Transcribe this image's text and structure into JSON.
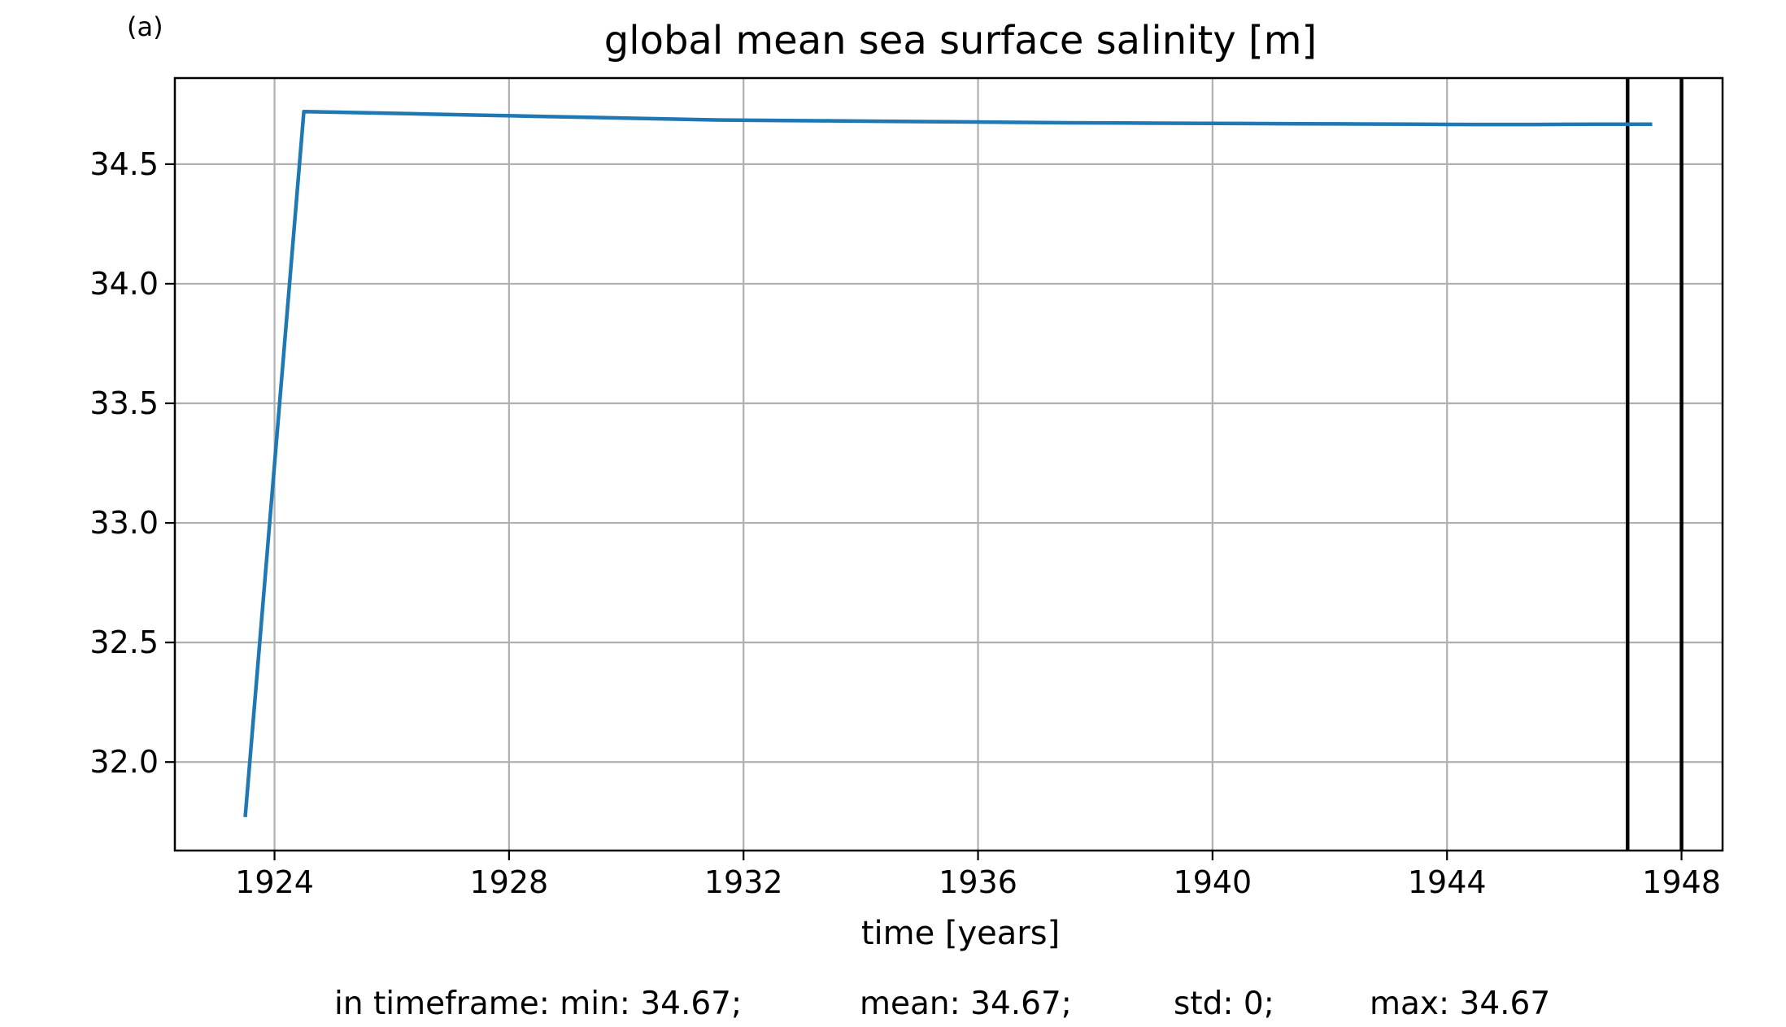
{
  "chart_data": {
    "type": "line",
    "panel_label": "(a)",
    "title": "global mean sea surface salinity [m]",
    "xlabel": "time [years]",
    "ylabel": "",
    "xlim": [
      1922.3,
      1948.7
    ],
    "ylim": [
      31.63,
      34.86
    ],
    "xticks": [
      1924,
      1928,
      1932,
      1936,
      1940,
      1944,
      1948
    ],
    "yticks": [
      32.0,
      32.5,
      33.0,
      33.5,
      34.0,
      34.5
    ],
    "ytick_labels": [
      "32.0",
      "32.5",
      "33.0",
      "33.5",
      "34.0",
      "34.5"
    ],
    "grid": true,
    "series": [
      {
        "color": "#1f77b4",
        "x": [
          1923.5,
          1924.5,
          1925.5,
          1926.5,
          1927.5,
          1928.5,
          1929.5,
          1930.5,
          1931.5,
          1932.5,
          1933.5,
          1934.5,
          1935.5,
          1936.5,
          1937.5,
          1938.5,
          1939.5,
          1940.5,
          1941.5,
          1942.5,
          1943.5,
          1944.5,
          1945.5,
          1946.5,
          1947.5
        ],
        "y": [
          31.77,
          34.72,
          34.715,
          34.71,
          34.705,
          34.7,
          34.695,
          34.69,
          34.685,
          34.683,
          34.681,
          34.679,
          34.677,
          34.675,
          34.673,
          34.672,
          34.671,
          34.67,
          34.669,
          34.668,
          34.667,
          34.666,
          34.666,
          34.667,
          34.667
        ]
      }
    ],
    "vlines": [
      {
        "x": 1947.08,
        "color": "#000000"
      },
      {
        "x": 1948.0,
        "color": "#000000"
      }
    ]
  },
  "stats": {
    "min": "in timeframe: min: 34.67;",
    "mean": "mean: 34.67;",
    "std": "std: 0;",
    "max": "max: 34.67"
  }
}
